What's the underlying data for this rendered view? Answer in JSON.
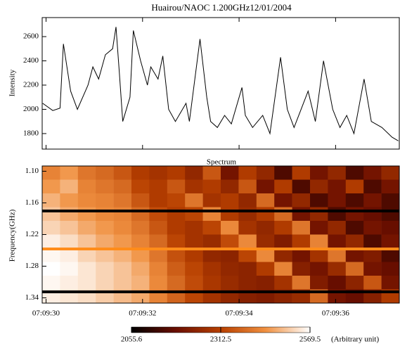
{
  "chart_data": [
    {
      "type": "line",
      "title": "Huairou/NAOC  1.200GHz12/01/2004",
      "ylabel": "Intensity",
      "color": "#000000",
      "x": [
        29.93,
        30.14,
        30.29,
        30.36,
        30.51,
        30.65,
        30.87,
        30.97,
        31.09,
        31.23,
        31.38,
        31.45,
        31.52,
        31.59,
        31.74,
        31.81,
        31.96,
        32.1,
        32.17,
        32.32,
        32.42,
        32.54,
        32.68,
        32.9,
        32.97,
        33.19,
        33.33,
        33.41,
        33.55,
        33.7,
        33.84,
        34.06,
        34.13,
        34.28,
        34.49,
        34.64,
        34.86,
        35.0,
        35.14,
        35.43,
        35.58,
        35.75,
        35.94,
        36.09,
        36.23,
        36.38,
        36.59,
        36.74,
        36.96,
        37.17,
        37.3
      ],
      "values": [
        2050,
        1990,
        2010,
        2540,
        2150,
        2000,
        2200,
        2350,
        2250,
        2450,
        2500,
        2680,
        2300,
        1900,
        2100,
        2650,
        2400,
        2200,
        2350,
        2250,
        2440,
        2000,
        1900,
        2050,
        1900,
        2580,
        2100,
        1900,
        1850,
        1950,
        1880,
        2180,
        1950,
        1850,
        1950,
        1800,
        2430,
        2000,
        1850,
        2150,
        1900,
        2400,
        2000,
        1850,
        1950,
        1800,
        2250,
        1900,
        1850,
        1770,
        1740
      ],
      "xlim": [
        29.92,
        37.32
      ],
      "ylim": [
        1672,
        2757
      ],
      "yticks": [
        1800,
        2000,
        2200,
        2400,
        2600
      ]
    },
    {
      "type": "heatmap",
      "title": "Spectrum",
      "ylabel": "Frequency(GHz)",
      "xbins": [
        29.92,
        30.29,
        30.66,
        31.03,
        31.4,
        31.77,
        32.14,
        32.51,
        32.88,
        33.25,
        33.62,
        33.99,
        34.36,
        34.73,
        35.1,
        35.47,
        35.84,
        36.21,
        36.58,
        36.95,
        37.32
      ],
      "ybins": [
        1.09,
        1.116,
        1.142,
        1.168,
        1.194,
        1.22,
        1.246,
        1.272,
        1.298,
        1.324,
        1.35
      ],
      "z": [
        [
          2420,
          2450,
          2400,
          2380,
          2350,
          2300,
          2280,
          2300,
          2250,
          2350,
          2200,
          2300,
          2250,
          2150,
          2300,
          2200,
          2250,
          2150,
          2200,
          2250
        ],
        [
          2450,
          2480,
          2420,
          2400,
          2380,
          2320,
          2300,
          2350,
          2280,
          2300,
          2250,
          2350,
          2200,
          2300,
          2150,
          2250,
          2200,
          2300,
          2150,
          2200
        ],
        [
          2480,
          2450,
          2430,
          2420,
          2400,
          2350,
          2300,
          2320,
          2400,
          2280,
          2300,
          2250,
          2380,
          2200,
          2250,
          2150,
          2200,
          2150,
          2200,
          2150
        ],
        [
          2500,
          2470,
          2450,
          2430,
          2420,
          2380,
          2330,
          2300,
          2320,
          2420,
          2300,
          2260,
          2300,
          2380,
          2200,
          2250,
          2150,
          2200,
          2180,
          2150
        ],
        [
          2520,
          2500,
          2470,
          2450,
          2430,
          2400,
          2350,
          2300,
          2280,
          2320,
          2430,
          2280,
          2250,
          2300,
          2400,
          2200,
          2250,
          2150,
          2200,
          2180
        ],
        [
          2550,
          2530,
          2500,
          2470,
          2450,
          2420,
          2380,
          2320,
          2280,
          2260,
          2330,
          2430,
          2260,
          2220,
          2300,
          2420,
          2200,
          2250,
          2150,
          2200
        ],
        [
          2560,
          2550,
          2520,
          2500,
          2480,
          2450,
          2400,
          2340,
          2300,
          2250,
          2240,
          2320,
          2430,
          2250,
          2200,
          2280,
          2400,
          2200,
          2220,
          2150
        ],
        [
          2570,
          2560,
          2540,
          2520,
          2500,
          2470,
          2420,
          2360,
          2320,
          2280,
          2250,
          2240,
          2300,
          2420,
          2230,
          2200,
          2260,
          2380,
          2200,
          2180
        ],
        [
          2560,
          2550,
          2540,
          2520,
          2500,
          2480,
          2430,
          2380,
          2330,
          2290,
          2260,
          2240,
          2230,
          2280,
          2400,
          2220,
          2180,
          2240,
          2350,
          2200
        ],
        [
          2550,
          2540,
          2530,
          2510,
          2490,
          2470,
          2420,
          2370,
          2320,
          2280,
          2250,
          2230,
          2220,
          2240,
          2260,
          2380,
          2200,
          2180,
          2230,
          2300
        ]
      ],
      "xlim": [
        29.92,
        37.32
      ],
      "ylim": [
        1.09,
        1.35
      ],
      "xticks": [
        {
          "value": 30,
          "label": "07:09:30"
        },
        {
          "value": 32,
          "label": "07:09:32"
        },
        {
          "value": 34,
          "label": "07:09:34"
        },
        {
          "value": 36,
          "label": "07:09:36"
        }
      ],
      "yticks": [
        {
          "value": 1.1,
          "label": "1.10"
        },
        1.16,
        1.22,
        1.28,
        1.34
      ],
      "zlim": [
        2055.6,
        2569.5
      ],
      "colormap": [
        "#000000",
        "#6a0e00",
        "#b84000",
        "#f09040",
        "#ffffff"
      ],
      "cticks": [
        2055.6,
        2312.5,
        2569.5
      ],
      "colorbar_label": "(Arbitrary unit)"
    }
  ]
}
